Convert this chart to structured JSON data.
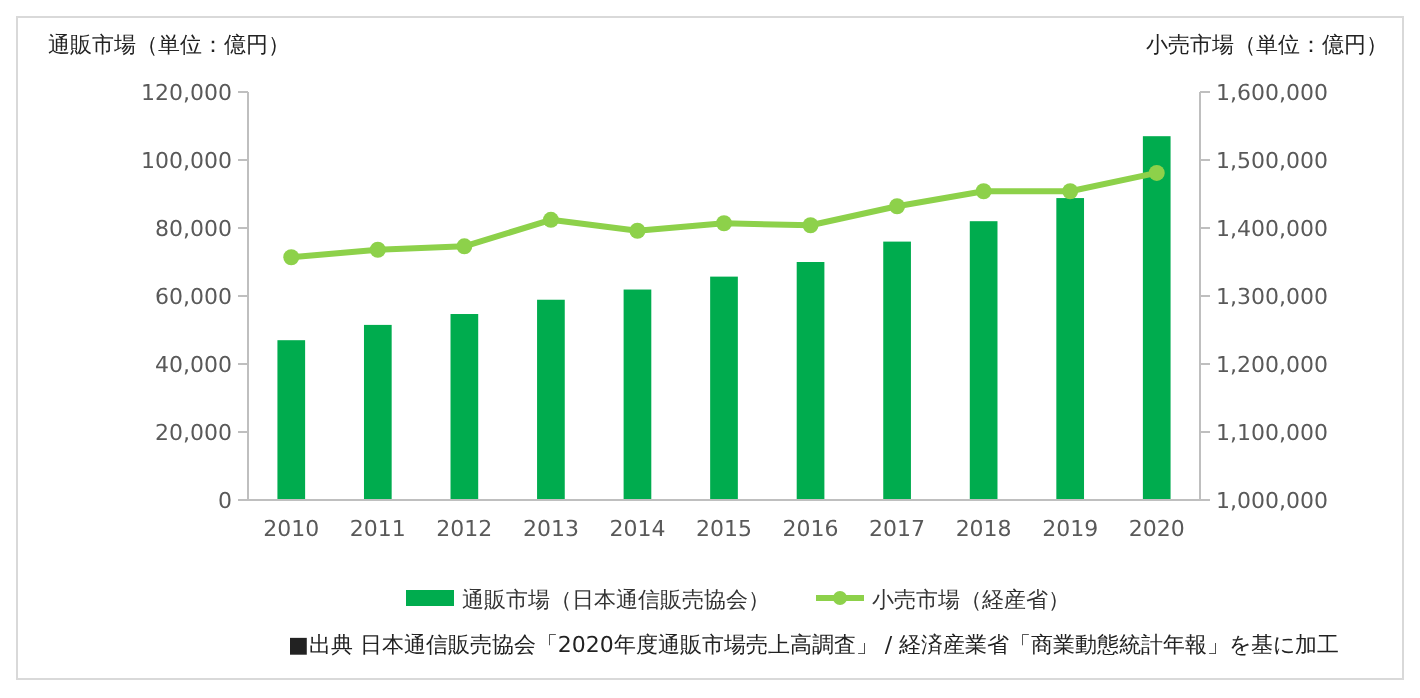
{
  "chart_data": {
    "type": "bar",
    "ylabel": "通販市場（単位：億円）",
    "y2label": "小売市場（単位：億円）",
    "categories": [
      "2010",
      "2011",
      "2012",
      "2013",
      "2014",
      "2015",
      "2016",
      "2017",
      "2018",
      "2019",
      "2020"
    ],
    "series": [
      {
        "name": "通販市場（日本通信販売協会）",
        "color": "#00ac4e",
        "values": [
          47000,
          51500,
          54700,
          58900,
          61900,
          65700,
          70000,
          76000,
          82000,
          88800,
          107000
        ]
      },
      {
        "name": "小売市場（経産省）",
        "type": "line",
        "axis": "y2",
        "color": "#8dd14a",
        "marker": "circle",
        "values": [
          1357000,
          1368000,
          1373000,
          1412000,
          1396000,
          1407000,
          1404000,
          1432000,
          1454000,
          1454000,
          1481000
        ]
      }
    ],
    "ylim": [
      0,
      120000
    ],
    "yticks": [
      {
        "value": 0,
        "label": "0"
      },
      {
        "value": 20000,
        "label": "20,000"
      },
      {
        "value": 40000,
        "label": "40,000"
      },
      {
        "value": 60000,
        "label": "60,000"
      },
      {
        "value": 80000,
        "label": "80,000"
      },
      {
        "value": 100000,
        "label": "100,000"
      },
      {
        "value": 120000,
        "label": "120,000"
      }
    ],
    "y2lim": [
      1000000,
      1600000
    ],
    "y2ticks": [
      {
        "value": 1000000,
        "label": "1,000,000"
      },
      {
        "value": 1100000,
        "label": "1,100,000"
      },
      {
        "value": 1200000,
        "label": "1,200,000"
      },
      {
        "value": 1300000,
        "label": "1,300,000"
      },
      {
        "value": 1400000,
        "label": "1,400,000"
      },
      {
        "value": 1500000,
        "label": "1,500,000"
      },
      {
        "value": 1600000,
        "label": "1,600,000"
      }
    ],
    "legend": "bottom",
    "annotations": [
      "■出典  日本通信販売協会「2020年度通販市場売上高調査」 / 経済産業省「商業動態統計年報」を基に加工"
    ]
  }
}
